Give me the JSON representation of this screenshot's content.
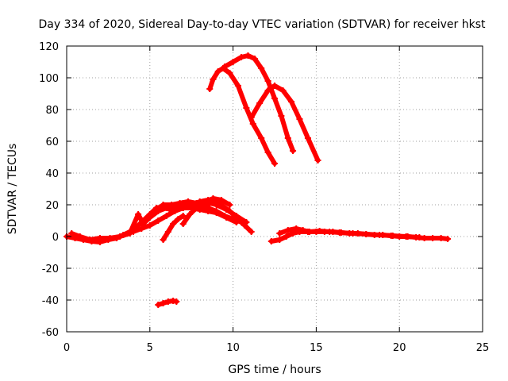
{
  "chart_data": {
    "type": "scatter",
    "title": "Day 334 of 2020, Sidereal Day-to-day VTEC variation (SDTVAR) for receiver hkst",
    "xlabel": "GPS time / hours",
    "ylabel": "SDTVAR / TECUs",
    "xlim": [
      0,
      25
    ],
    "ylim": [
      -60,
      120
    ],
    "xticks": [
      0,
      5,
      10,
      15,
      20,
      25
    ],
    "yticks": [
      -60,
      -40,
      -20,
      0,
      20,
      40,
      60,
      80,
      100,
      120
    ],
    "grid": true,
    "marker_color": "#ff0000",
    "series": [
      {
        "name": "arc-1",
        "points": [
          [
            8.6,
            93
          ],
          [
            8.8,
            99
          ],
          [
            9.1,
            104
          ],
          [
            9.4,
            106
          ],
          [
            9.8,
            103
          ],
          [
            10.3,
            95
          ],
          [
            10.8,
            81
          ],
          [
            11.2,
            71
          ],
          [
            11.7,
            62
          ],
          [
            12.1,
            53
          ],
          [
            12.5,
            46
          ]
        ]
      },
      {
        "name": "arc-2",
        "points": [
          [
            9.5,
            107
          ],
          [
            10.0,
            110
          ],
          [
            10.5,
            113
          ],
          [
            10.9,
            114
          ],
          [
            11.3,
            112
          ],
          [
            11.7,
            106
          ],
          [
            12.1,
            98
          ],
          [
            12.5,
            87
          ],
          [
            12.9,
            76
          ],
          [
            13.3,
            62
          ],
          [
            13.6,
            54
          ]
        ]
      },
      {
        "name": "arc-3",
        "points": [
          [
            11.1,
            75
          ],
          [
            11.6,
            84
          ],
          [
            12.1,
            92
          ],
          [
            12.5,
            95
          ],
          [
            13.0,
            92
          ],
          [
            13.5,
            85
          ],
          [
            14.0,
            74
          ],
          [
            14.5,
            62
          ],
          [
            15.1,
            48
          ]
        ]
      },
      {
        "name": "low-1",
        "points": [
          [
            0,
            0
          ],
          [
            0.5,
            -1
          ],
          [
            1.0,
            -2
          ],
          [
            1.5,
            -3
          ],
          [
            2.0,
            -3.5
          ],
          [
            2.5,
            -2
          ],
          [
            3.0,
            -1
          ],
          [
            3.4,
            1
          ],
          [
            3.8,
            3
          ],
          [
            4.2,
            6
          ],
          [
            4.6,
            10
          ],
          [
            5.0,
            14
          ],
          [
            5.4,
            18
          ],
          [
            5.8,
            19
          ],
          [
            6.2,
            17
          ],
          [
            6.6,
            19
          ],
          [
            7.0,
            21
          ],
          [
            7.5,
            20
          ],
          [
            8.0,
            22
          ],
          [
            8.5,
            23
          ],
          [
            9.0,
            22
          ],
          [
            9.4,
            19
          ],
          [
            9.8,
            16
          ],
          [
            10.2,
            12
          ],
          [
            10.7,
            7
          ],
          [
            11.1,
            3
          ]
        ]
      },
      {
        "name": "low-2",
        "points": [
          [
            0.3,
            2
          ],
          [
            0.8,
            0
          ],
          [
            1.4,
            -2
          ],
          [
            2.0,
            -1
          ],
          [
            2.6,
            -1
          ],
          [
            3.2,
            0
          ],
          [
            3.8,
            2
          ],
          [
            4.3,
            14
          ],
          [
            4.6,
            8
          ],
          [
            5.0,
            12
          ],
          [
            5.5,
            16
          ],
          [
            6.0,
            18
          ],
          [
            6.5,
            16
          ],
          [
            7.0,
            18
          ],
          [
            7.5,
            19
          ],
          [
            8.0,
            19
          ],
          [
            8.5,
            18
          ],
          [
            9.0,
            16
          ],
          [
            9.5,
            13
          ],
          [
            10.0,
            11
          ],
          [
            10.5,
            9
          ]
        ]
      },
      {
        "name": "low-3",
        "points": [
          [
            4.0,
            3
          ],
          [
            4.5,
            5
          ],
          [
            5.0,
            7
          ],
          [
            5.5,
            10
          ],
          [
            6.0,
            13
          ],
          [
            6.5,
            16
          ],
          [
            7.0,
            18
          ],
          [
            7.5,
            18
          ],
          [
            8.0,
            17
          ],
          [
            8.5,
            16
          ],
          [
            9.0,
            15
          ],
          [
            9.6,
            12
          ],
          [
            10.2,
            9
          ]
        ]
      },
      {
        "name": "low-4",
        "points": [
          [
            5.3,
            16
          ],
          [
            5.8,
            20
          ],
          [
            6.3,
            20
          ],
          [
            6.8,
            21
          ],
          [
            7.3,
            22
          ],
          [
            7.8,
            21
          ],
          [
            8.3,
            22
          ],
          [
            8.8,
            24
          ],
          [
            9.3,
            23
          ],
          [
            9.8,
            20
          ]
        ]
      },
      {
        "name": "short-1",
        "points": [
          [
            5.8,
            -2
          ],
          [
            6.1,
            3
          ],
          [
            6.4,
            8
          ],
          [
            6.7,
            11
          ],
          [
            7.0,
            13
          ]
        ]
      },
      {
        "name": "short-2",
        "points": [
          [
            7.0,
            8
          ],
          [
            7.4,
            14
          ],
          [
            7.8,
            18
          ],
          [
            8.2,
            20
          ],
          [
            8.6,
            21
          ],
          [
            9.0,
            20
          ],
          [
            9.6,
            17
          ],
          [
            10.2,
            13
          ],
          [
            10.8,
            9
          ]
        ]
      },
      {
        "name": "neg-segment",
        "points": [
          [
            5.5,
            -43
          ],
          [
            5.8,
            -42
          ],
          [
            6.1,
            -41
          ],
          [
            6.4,
            -40.5
          ],
          [
            6.6,
            -41
          ]
        ]
      },
      {
        "name": "tail-1",
        "points": [
          [
            12.3,
            -3
          ],
          [
            12.8,
            -2
          ],
          [
            13.2,
            0
          ],
          [
            13.6,
            2
          ],
          [
            14.0,
            3
          ],
          [
            14.5,
            3
          ],
          [
            15.0,
            3
          ],
          [
            15.5,
            3
          ],
          [
            16.0,
            3
          ],
          [
            16.5,
            2.5
          ],
          [
            17.0,
            2
          ],
          [
            17.5,
            2
          ],
          [
            18.0,
            1.5
          ],
          [
            18.5,
            1
          ],
          [
            19.0,
            1
          ],
          [
            19.5,
            0.5
          ],
          [
            20.0,
            0
          ],
          [
            20.5,
            0
          ],
          [
            21.0,
            -0.5
          ],
          [
            21.5,
            -1
          ],
          [
            22.0,
            -1
          ],
          [
            22.5,
            -1
          ],
          [
            22.9,
            -1.5
          ]
        ]
      },
      {
        "name": "tail-2",
        "points": [
          [
            12.8,
            2
          ],
          [
            13.3,
            4
          ],
          [
            13.8,
            5
          ],
          [
            14.2,
            4
          ],
          [
            14.6,
            3
          ],
          [
            15.2,
            3.5
          ],
          [
            15.8,
            3
          ],
          [
            16.4,
            2.5
          ],
          [
            17.2,
            2
          ],
          [
            18.0,
            1.5
          ],
          [
            18.8,
            1
          ],
          [
            19.6,
            0.5
          ],
          [
            20.4,
            0
          ],
          [
            21.2,
            -0.5
          ]
        ]
      }
    ]
  }
}
